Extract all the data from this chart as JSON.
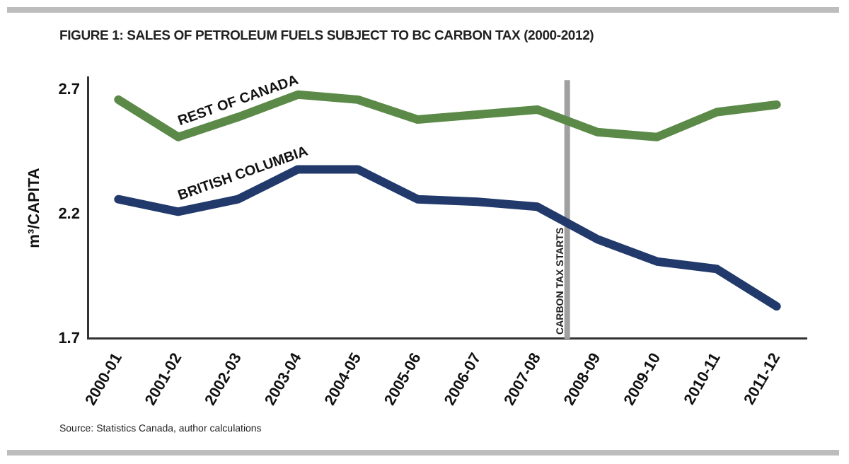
{
  "chart_data": {
    "type": "line",
    "title": "FIGURE 1: SALES OF PETROLEUM FUELS SUBJECT TO BC CARBON TAX (2000-2012)",
    "ylabel": "m³/CAPITA",
    "categories": [
      "2000-01",
      "2001-02",
      "2002-03",
      "2003-04",
      "2004-05",
      "2005-06",
      "2006-07",
      "2007-08",
      "2008-09",
      "2009-10",
      "2010-11",
      "2011-12"
    ],
    "series": [
      {
        "name": "REST OF CANADA",
        "color": "#5b8a48",
        "values": [
          2.66,
          2.51,
          2.59,
          2.68,
          2.66,
          2.58,
          2.6,
          2.62,
          2.53,
          2.51,
          2.61,
          2.64
        ]
      },
      {
        "name": "BRITISH COLUMBIA",
        "color": "#213a6b",
        "values": [
          2.26,
          2.21,
          2.26,
          2.38,
          2.38,
          2.26,
          2.25,
          2.23,
          2.1,
          2.01,
          1.98,
          1.83
        ]
      }
    ],
    "ylim": [
      1.7,
      2.75
    ],
    "yticks": [
      1.7,
      2.2,
      2.7
    ],
    "grid": false,
    "legend": false,
    "marker": "none",
    "line_style": "solid",
    "ref_lines": [
      {
        "axis": "x",
        "value": "2008-09",
        "label": "CARBON TAX STARTS",
        "color": "#a0a0a0"
      }
    ],
    "annotations": [
      "Source: Statistics Canada, author calculations"
    ]
  }
}
